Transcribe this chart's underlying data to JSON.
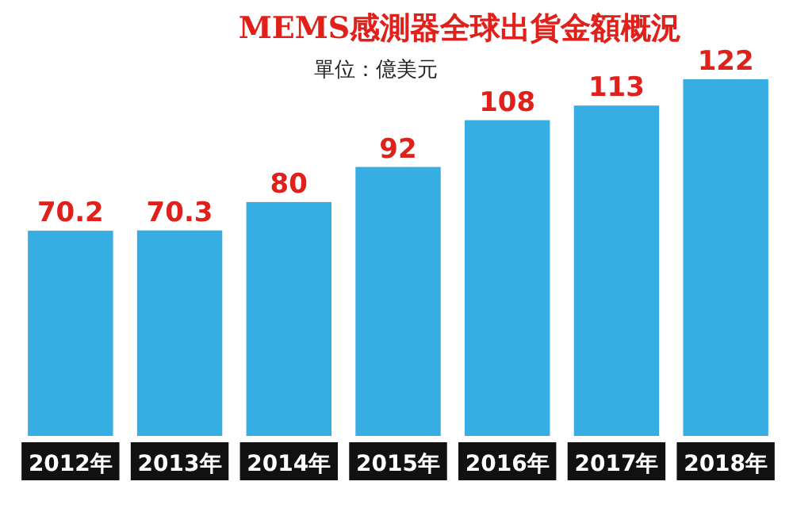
{
  "chart_data": {
    "type": "bar",
    "title": "MEMS感測器全球出貨金額概況",
    "annotations": [
      "單位：億美元"
    ],
    "categories": [
      "2012年",
      "2013年",
      "2014年",
      "2015年",
      "2016年",
      "2017年",
      "2018年"
    ],
    "values": [
      70.2,
      70.3,
      80,
      92,
      108,
      113,
      122
    ],
    "color": "#37aee3",
    "data_labels": true
  }
}
